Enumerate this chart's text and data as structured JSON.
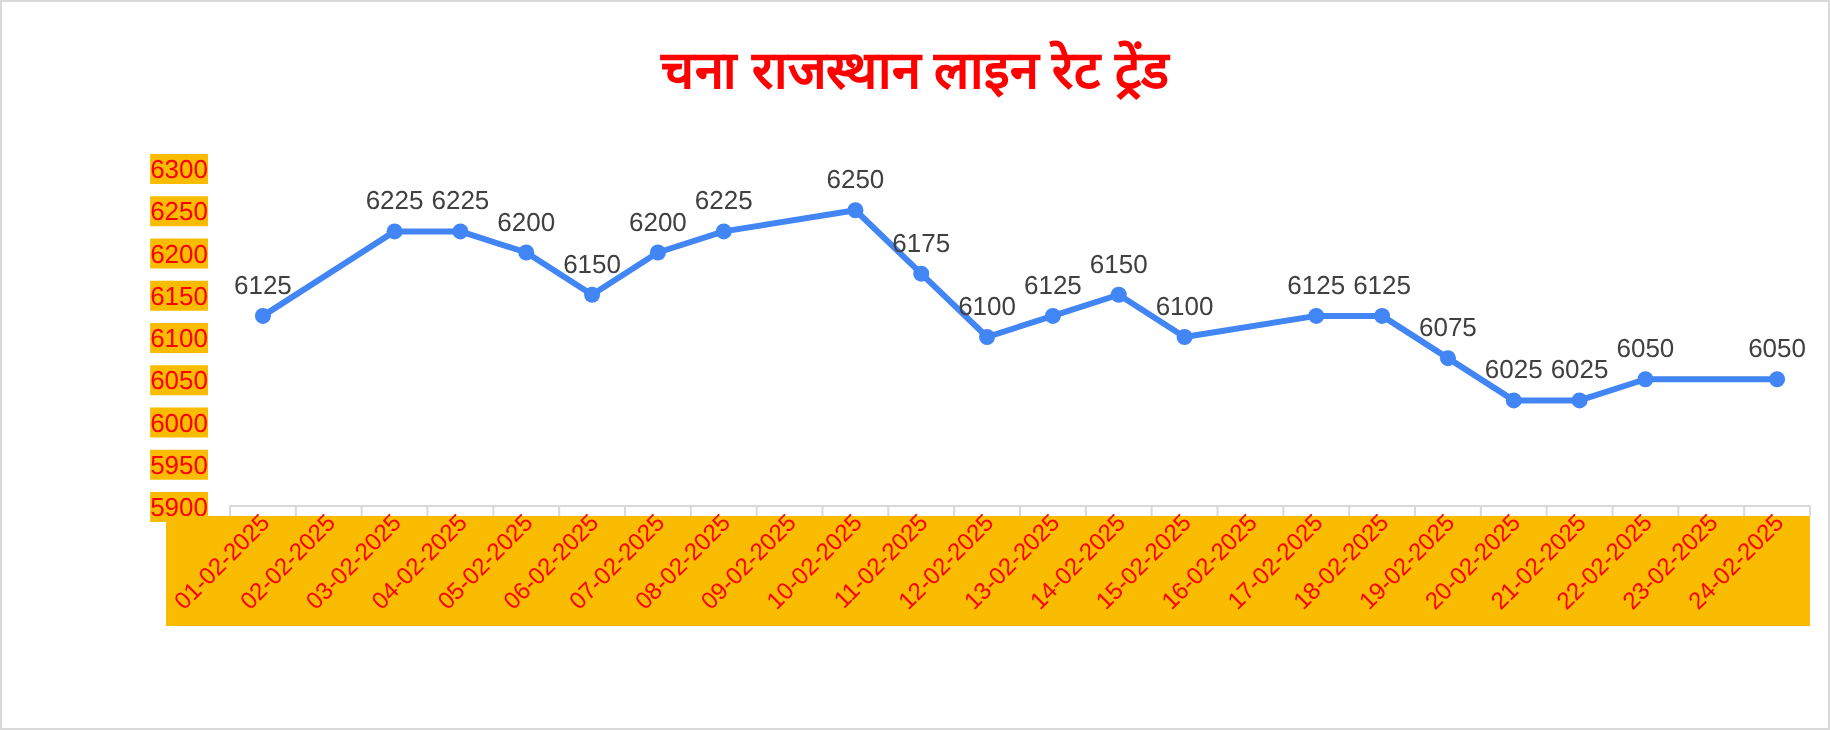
{
  "chart_data": {
    "type": "line",
    "title": "चना राजस्थान लाइन रेट ट्रेंड",
    "categories": [
      "01-02-2025",
      "02-02-2025",
      "03-02-2025",
      "04-02-2025",
      "05-02-2025",
      "06-02-2025",
      "07-02-2025",
      "08-02-2025",
      "09-02-2025",
      "10-02-2025",
      "11-02-2025",
      "12-02-2025",
      "13-02-2025",
      "14-02-2025",
      "15-02-2025",
      "16-02-2025",
      "17-02-2025",
      "18-02-2025",
      "19-02-2025",
      "20-02-2025",
      "21-02-2025",
      "22-02-2025",
      "23-02-2025",
      "24-02-2025"
    ],
    "series": [
      {
        "color": "#4285f4",
        "values": [
          6125,
          null,
          6225,
          6225,
          6200,
          6150,
          6200,
          6225,
          null,
          6250,
          6175,
          6100,
          6125,
          6150,
          6100,
          null,
          6125,
          6125,
          6075,
          6025,
          6025,
          6050,
          null,
          6050
        ]
      }
    ],
    "ylim": [
      5900,
      6300
    ],
    "yticks": [
      5900,
      5950,
      6000,
      6050,
      6100,
      6150,
      6200,
      6250,
      6300
    ],
    "data_labels": true,
    "grid": false,
    "marker": "circle",
    "line_style": "solid"
  }
}
